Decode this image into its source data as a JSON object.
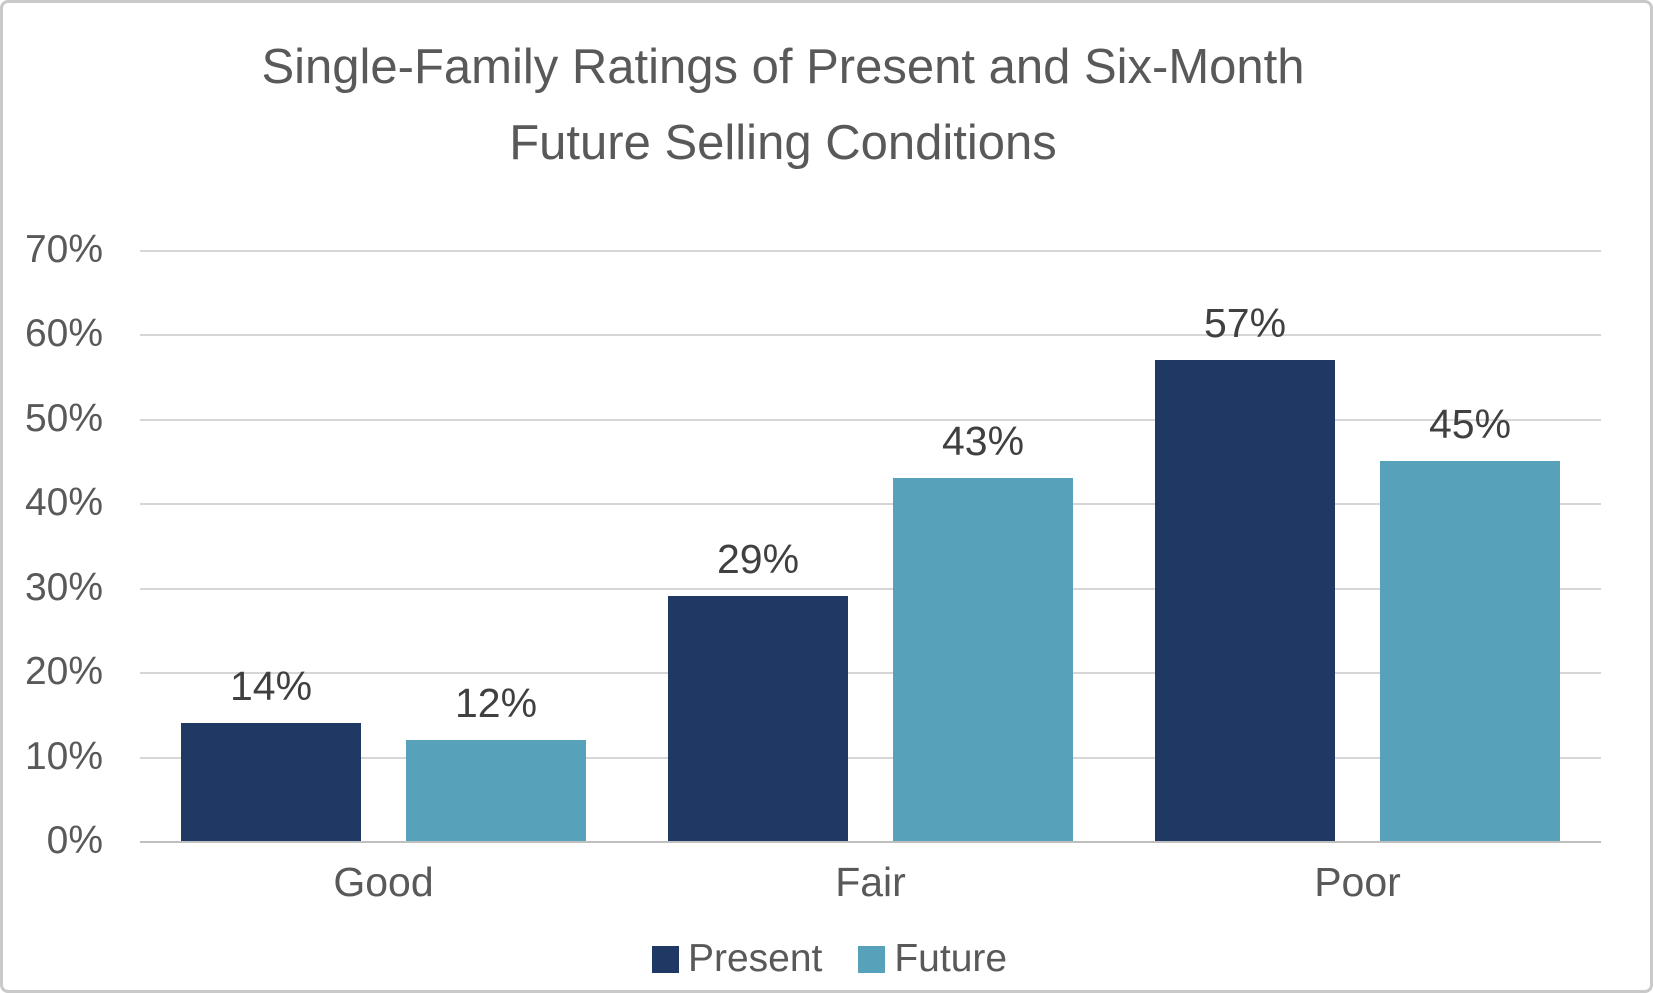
{
  "chart_data": {
    "type": "bar",
    "title": "Single-Family Ratings of Present and Six-Month Future Selling Conditions",
    "title_lines": [
      "Single-Family Ratings of Present and Six-Month",
      "Future Selling Conditions"
    ],
    "categories": [
      "Good",
      "Fair",
      "Poor"
    ],
    "series": [
      {
        "name": "Present",
        "color": "#1f3864",
        "values": [
          14,
          29,
          57
        ],
        "labels": [
          "14%",
          "29%",
          "57%"
        ]
      },
      {
        "name": "Future",
        "color": "#57a2ba",
        "values": [
          12,
          43,
          45
        ],
        "labels": [
          "12%",
          "43%",
          "45%"
        ]
      }
    ],
    "y_axis": {
      "ticks": [
        "70%",
        "60%",
        "50%",
        "40%",
        "30%",
        "20%",
        "10%",
        "0%"
      ],
      "min": 0,
      "max": 70
    },
    "grid": true,
    "legend": {
      "position": "bottom",
      "entries": [
        "Present",
        "Future"
      ]
    }
  },
  "colors": {
    "present": "#1f3864",
    "future": "#57a2ba",
    "gridline": "#d6d6d6",
    "axis_line": "#bfbfbf",
    "title_text": "#595959",
    "axis_text": "#595959",
    "data_label_text": "#404040",
    "background": "#ffffff",
    "border": "#c9c9c9"
  }
}
